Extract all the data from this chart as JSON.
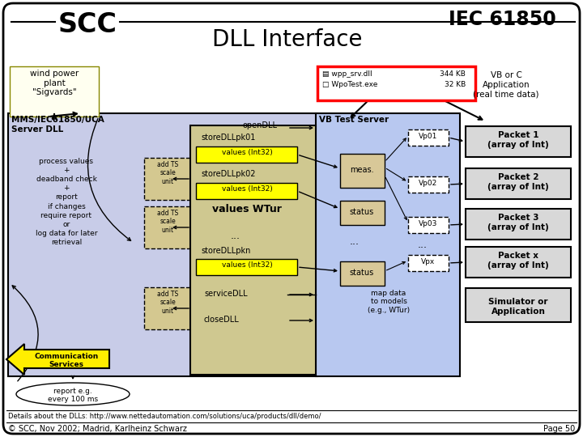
{
  "title": "DLL Interface",
  "scc_text": "SCC",
  "iec_text": "IEC 61850",
  "bg_color": "#ffffff",
  "main_box_color": "#c8cce8",
  "yellow_box_color": "#ffff00",
  "vb_server_color": "#c8d0f0",
  "packet_box_color": "#d8d8d8",
  "wind_box_color": "#fffff0",
  "tan_color": "#d4c890",
  "footer_text": "Details about the DLLs: http://www.nettedautomation.com/solutions/uca/products/dll/demo/",
  "copyright_text": "© SCC, Nov 2002; Madrid, Karlheinz Schwarz",
  "page_text": "Page 50"
}
